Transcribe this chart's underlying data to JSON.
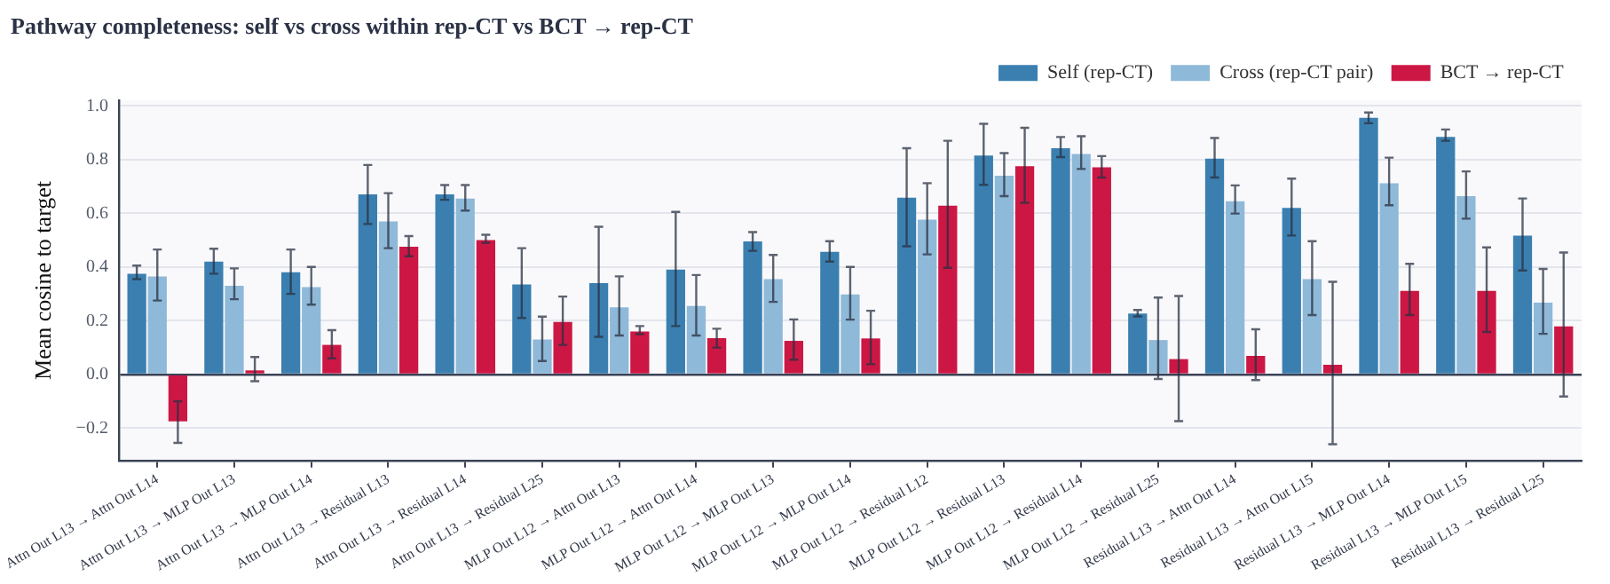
{
  "chart_data": {
    "type": "bar",
    "title": "Pathway completeness: self vs cross within rep-CT vs BCT → rep-CT",
    "ylabel": "Mean cosine to target",
    "categories": [
      "Attn Out L13 → Attn Out L14",
      "Attn Out L13 → MLP Out L13",
      "Attn Out L13 → MLP Out L14",
      "Attn Out L13 → Residual L13",
      "Attn Out L13 → Residual L14",
      "Attn Out L13 → Residual L25",
      "MLP Out L12 → Attn Out L13",
      "MLP Out L12 → Attn Out L14",
      "MLP Out L12 → MLP Out L13",
      "MLP Out L12 → MLP Out L14",
      "MLP Out L12 → Residual L12",
      "MLP Out L12 → Residual L13",
      "MLP Out L12 → Residual L14",
      "MLP Out L12 → Residual L25",
      "Residual L13 → Attn Out L14",
      "Residual L13 → Attn Out L15",
      "Residual L13 → MLP Out L14",
      "Residual L13 → MLP Out L15",
      "Residual L13 → Residual L25"
    ],
    "series": [
      {
        "name": "Self (rep-CT)",
        "color": "#3b7fb0",
        "values": [
          0.375,
          0.42,
          0.38,
          0.67,
          0.67,
          0.335,
          0.34,
          0.39,
          0.495,
          0.456,
          0.658,
          0.815,
          0.842,
          0.227,
          0.803,
          0.62,
          0.955,
          0.884,
          0.517
        ],
        "errors": [
          [
            0.355,
            0.405
          ],
          [
            0.375,
            0.468
          ],
          [
            0.3,
            0.465
          ],
          [
            0.56,
            0.78
          ],
          [
            0.65,
            0.705
          ],
          [
            0.21,
            0.47
          ],
          [
            0.14,
            0.55
          ],
          [
            0.18,
            0.605
          ],
          [
            0.46,
            0.53
          ],
          [
            0.42,
            0.496
          ],
          [
            0.477,
            0.842
          ],
          [
            0.706,
            0.933
          ],
          [
            0.809,
            0.884
          ],
          [
            0.216,
            0.24
          ],
          [
            0.733,
            0.88
          ],
          [
            0.517,
            0.729
          ],
          [
            0.935,
            0.975
          ],
          [
            0.87,
            0.912
          ],
          [
            0.387,
            0.655
          ]
        ]
      },
      {
        "name": "Cross (rep-CT pair)",
        "color": "#8fb9d8",
        "values": [
          0.365,
          0.33,
          0.325,
          0.57,
          0.655,
          0.13,
          0.25,
          0.255,
          0.355,
          0.298,
          0.576,
          0.74,
          0.821,
          0.128,
          0.645,
          0.355,
          0.712,
          0.664,
          0.267
        ],
        "errors": [
          [
            0.275,
            0.465
          ],
          [
            0.28,
            0.395
          ],
          [
            0.26,
            0.4
          ],
          [
            0.47,
            0.675
          ],
          [
            0.61,
            0.705
          ],
          [
            0.05,
            0.215
          ],
          [
            0.145,
            0.365
          ],
          [
            0.145,
            0.37
          ],
          [
            0.27,
            0.445
          ],
          [
            0.204,
            0.4
          ],
          [
            0.447,
            0.712
          ],
          [
            0.664,
            0.824
          ],
          [
            0.765,
            0.887
          ],
          [
            -0.017,
            0.286
          ],
          [
            0.599,
            0.704
          ],
          [
            0.221,
            0.496
          ],
          [
            0.63,
            0.807
          ],
          [
            0.58,
            0.756
          ],
          [
            0.151,
            0.393
          ]
        ]
      },
      {
        "name": "BCT → rep-CT",
        "color": "#cc1744",
        "values": [
          -0.175,
          0.015,
          0.11,
          0.475,
          0.5,
          0.195,
          0.16,
          0.135,
          0.125,
          0.134,
          0.628,
          0.775,
          0.771,
          0.057,
          0.069,
          0.036,
          0.311,
          0.311,
          0.179
        ],
        "errors": [
          [
            -0.255,
            -0.1
          ],
          [
            -0.025,
            0.065
          ],
          [
            0.06,
            0.165
          ],
          [
            0.44,
            0.515
          ],
          [
            0.49,
            0.52
          ],
          [
            0.11,
            0.29
          ],
          [
            0.15,
            0.18
          ],
          [
            0.1,
            0.17
          ],
          [
            0.055,
            0.205
          ],
          [
            0.038,
            0.237
          ],
          [
            0.397,
            0.87
          ],
          [
            0.639,
            0.918
          ],
          [
            0.733,
            0.813
          ],
          [
            -0.174,
            0.292
          ],
          [
            -0.021,
            0.168
          ],
          [
            -0.26,
            0.345
          ],
          [
            0.221,
            0.412
          ],
          [
            0.158,
            0.473
          ],
          [
            -0.082,
            0.454
          ]
        ]
      }
    ],
    "ylim": [
      -0.32,
      1.02
    ],
    "yticks": [
      {
        "value": -0.2,
        "label": "−0.2"
      },
      {
        "value": 0,
        "label": "0.0"
      },
      {
        "value": 0.2,
        "label": "0.2"
      },
      {
        "value": 0.4,
        "label": "0.4"
      },
      {
        "value": 0.6,
        "label": "0.6"
      },
      {
        "value": 0.8,
        "label": "0.8"
      },
      {
        "value": 1,
        "label": "1.0"
      }
    ],
    "grid": "y",
    "legend": "top right"
  }
}
